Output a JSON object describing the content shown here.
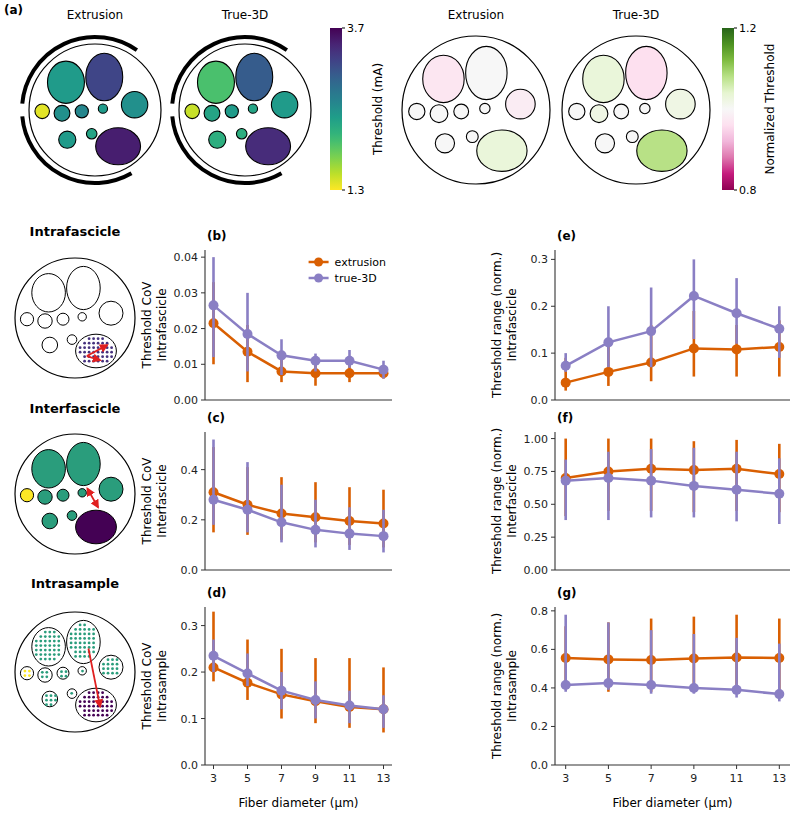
{
  "chart_data": [
    {
      "type": "map",
      "panel_label": "(a)",
      "colorbars": [
        {
          "label": "Threshold (mA)",
          "range": [
            1.3,
            3.7
          ],
          "ticks": [
            1.3,
            3.7
          ],
          "maps": [
            {
              "title": "Extrusion",
              "values": [
                2.4,
                3.2,
                1.4,
                2.5,
                2.6,
                2.4,
                2.5,
                2.4,
                2.3,
                3.5
              ]
            },
            {
              "title": "True-3D",
              "values": [
                2.0,
                3.0,
                1.5,
                2.3,
                2.4,
                2.3,
                2.4,
                2.2,
                2.2,
                3.4
              ]
            }
          ]
        },
        {
          "label": "Normalized Threshold",
          "range": [
            0.8,
            1.2
          ],
          "ticks": [
            0.8,
            1.2
          ],
          "maps": [
            {
              "title": "Extrusion",
              "values": [
                0.97,
                1.0,
                1.0,
                1.0,
                1.0,
                1.0,
                0.98,
                1.0,
                1.0,
                1.03
              ]
            },
            {
              "title": "True-3D",
              "values": [
                1.03,
                0.96,
                1.0,
                1.02,
                1.0,
                1.0,
                1.02,
                1.0,
                1.0,
                1.08
              ]
            }
          ]
        }
      ]
    },
    {
      "type": "line",
      "panel_label": "(b)",
      "row_label": "Intrafascicle",
      "y_label": "Threshold CoV Intrafascicle",
      "x": [
        3,
        5,
        7,
        9,
        11,
        13
      ],
      "xlim": [
        2.5,
        13.5
      ],
      "ylim": [
        0,
        0.042
      ],
      "yticks": [
        {
          "value": 0,
          "label": "0.00"
        },
        {
          "value": 0.01,
          "label": "0.01"
        },
        {
          "value": 0.02,
          "label": "0.02"
        },
        {
          "value": 0.03,
          "label": "0.03"
        },
        {
          "value": 0.04,
          "label": "0.04"
        }
      ],
      "tick_labels": "y",
      "legend": "upper right",
      "series": [
        {
          "name": "extrusion",
          "color": "#d95f02",
          "marker": "circle",
          "values": [
            0.0215,
            0.0135,
            0.008,
            0.0075,
            0.0075,
            0.0075
          ],
          "error_low": [
            0.01,
            0.005,
            0.005,
            0.004,
            0.005,
            0.006
          ],
          "error_high": [
            0.033,
            0.021,
            0.013,
            0.012,
            0.011,
            0.009
          ]
        },
        {
          "name": "true-3D",
          "color": "#8a7fc4",
          "marker": "circle",
          "values": [
            0.0265,
            0.0185,
            0.0125,
            0.011,
            0.011,
            0.0085
          ],
          "error_low": [
            0.012,
            0.008,
            0.007,
            0.008,
            0.009,
            0.006
          ],
          "error_high": [
            0.04,
            0.03,
            0.017,
            0.013,
            0.014,
            0.011
          ]
        }
      ]
    },
    {
      "type": "line",
      "panel_label": "(c)",
      "row_label": "Interfascicle",
      "y_label": "Threshold CoV Interfascicle",
      "x": [
        3,
        5,
        7,
        9,
        11,
        13
      ],
      "xlim": [
        2.5,
        13.5
      ],
      "ylim": [
        0,
        0.55
      ],
      "yticks": [
        {
          "value": 0,
          "label": "0.0"
        },
        {
          "value": 0.2,
          "label": "0.2"
        },
        {
          "value": 0.4,
          "label": "0.4"
        }
      ],
      "tick_labels": "y",
      "series": [
        {
          "name": "extrusion",
          "color": "#d95f02",
          "marker": "circle",
          "values": [
            0.31,
            0.26,
            0.225,
            0.21,
            0.195,
            0.185
          ],
          "error_low": [
            0.15,
            0.14,
            0.12,
            0.11,
            0.1,
            0.09
          ],
          "error_high": [
            0.49,
            0.41,
            0.37,
            0.35,
            0.33,
            0.32
          ]
        },
        {
          "name": "true-3D",
          "color": "#8a7fc4",
          "marker": "circle",
          "values": [
            0.28,
            0.24,
            0.19,
            0.16,
            0.145,
            0.135
          ],
          "error_low": [
            0.18,
            0.15,
            0.11,
            0.09,
            0.08,
            0.07
          ],
          "error_high": [
            0.52,
            0.43,
            0.34,
            0.28,
            0.25,
            0.24
          ]
        }
      ]
    },
    {
      "type": "line",
      "panel_label": "(d)",
      "row_label": "Intrasample",
      "y_label": "Threshold CoV Intrasample",
      "x_label": "Fiber diameter (μm)",
      "x": [
        3,
        5,
        7,
        9,
        11,
        13
      ],
      "xlim": [
        2.5,
        13.5
      ],
      "ylim": [
        0,
        0.34
      ],
      "xticks": [
        3,
        5,
        7,
        9,
        11,
        13
      ],
      "yticks": [
        {
          "value": 0,
          "label": "0.0"
        },
        {
          "value": 0.1,
          "label": "0.1"
        },
        {
          "value": 0.2,
          "label": "0.2"
        },
        {
          "value": 0.3,
          "label": "0.3"
        }
      ],
      "tick_labels": true,
      "series": [
        {
          "name": "extrusion",
          "color": "#d95f02",
          "marker": "circle",
          "values": [
            0.21,
            0.177,
            0.152,
            0.137,
            0.125,
            0.12
          ],
          "error_low": [
            0.18,
            0.14,
            0.1,
            0.09,
            0.08,
            0.07
          ],
          "error_high": [
            0.33,
            0.27,
            0.25,
            0.23,
            0.23,
            0.21
          ]
        },
        {
          "name": "true-3D",
          "color": "#8a7fc4",
          "marker": "circle",
          "values": [
            0.235,
            0.197,
            0.16,
            0.14,
            0.128,
            0.12
          ],
          "error_low": [
            0.2,
            0.17,
            0.12,
            0.1,
            0.09,
            0.08
          ],
          "error_high": [
            0.27,
            0.24,
            0.2,
            0.18,
            0.16,
            0.15
          ]
        }
      ]
    },
    {
      "type": "line",
      "panel_label": "(e)",
      "y_label": "Threshold range (norm.) Intrafascicle",
      "x": [
        3,
        5,
        7,
        9,
        11,
        13
      ],
      "xlim": [
        2.5,
        13.5
      ],
      "ylim": [
        0,
        0.32
      ],
      "yticks": [
        {
          "value": 0,
          "label": "0.0"
        },
        {
          "value": 0.1,
          "label": "0.1"
        },
        {
          "value": 0.2,
          "label": "0.2"
        },
        {
          "value": 0.3,
          "label": "0.3"
        }
      ],
      "tick_labels": "y",
      "series": [
        {
          "name": "extrusion",
          "color": "#d95f02",
          "marker": "circle",
          "values": [
            0.037,
            0.06,
            0.08,
            0.11,
            0.108,
            0.113
          ],
          "error_low": [
            0.02,
            0.03,
            0.04,
            0.05,
            0.05,
            0.05
          ],
          "error_high": [
            0.09,
            0.12,
            0.16,
            0.19,
            0.16,
            0.17
          ]
        },
        {
          "name": "true-3D",
          "color": "#8a7fc4",
          "marker": "circle",
          "values": [
            0.073,
            0.123,
            0.147,
            0.222,
            0.185,
            0.152
          ],
          "error_low": [
            0.06,
            0.07,
            0.07,
            0.13,
            0.12,
            0.09
          ],
          "error_high": [
            0.1,
            0.2,
            0.24,
            0.3,
            0.26,
            0.2
          ]
        }
      ]
    },
    {
      "type": "line",
      "panel_label": "(f)",
      "y_label": "Threshold range (norm.) Interfascicle",
      "x": [
        3,
        5,
        7,
        9,
        11,
        13
      ],
      "xlim": [
        2.5,
        13.5
      ],
      "ylim": [
        0,
        1.05
      ],
      "yticks": [
        {
          "value": 0,
          "label": "0.00"
        },
        {
          "value": 0.25,
          "label": "0.25"
        },
        {
          "value": 0.5,
          "label": "0.50"
        },
        {
          "value": 0.75,
          "label": "0.75"
        },
        {
          "value": 1,
          "label": "1.00"
        }
      ],
      "tick_labels": "y",
      "series": [
        {
          "name": "extrusion",
          "color": "#d95f02",
          "marker": "circle",
          "values": [
            0.7,
            0.75,
            0.77,
            0.76,
            0.77,
            0.73
          ],
          "error_low": [
            0.41,
            0.45,
            0.45,
            0.44,
            0.45,
            0.44
          ],
          "error_high": [
            1.0,
            1.0,
            1.0,
            0.98,
            0.99,
            0.96
          ]
        },
        {
          "name": "true-3D",
          "color": "#8a7fc4",
          "marker": "circle",
          "values": [
            0.68,
            0.7,
            0.68,
            0.64,
            0.61,
            0.58
          ],
          "error_low": [
            0.38,
            0.38,
            0.4,
            0.4,
            0.37,
            0.35
          ],
          "error_high": [
            0.84,
            0.9,
            0.92,
            0.93,
            0.9,
            0.85
          ]
        }
      ]
    },
    {
      "type": "line",
      "panel_label": "(g)",
      "y_label": "Threshold range (norm.) Intrasample",
      "x_label": "Fiber diameter (μm)",
      "x": [
        3,
        5,
        7,
        9,
        11,
        13
      ],
      "xlim": [
        2.5,
        13.5
      ],
      "ylim": [
        0,
        0.82
      ],
      "xticks": [
        3,
        5,
        7,
        9,
        11,
        13
      ],
      "yticks": [
        {
          "value": 0,
          "label": "0.0"
        },
        {
          "value": 0.2,
          "label": "0.2"
        },
        {
          "value": 0.4,
          "label": "0.4"
        },
        {
          "value": 0.6,
          "label": "0.6"
        },
        {
          "value": 0.8,
          "label": "0.8"
        }
      ],
      "tick_labels": true,
      "series": [
        {
          "name": "extrusion",
          "color": "#d95f02",
          "marker": "circle",
          "values": [
            0.555,
            0.548,
            0.545,
            0.553,
            0.558,
            0.555
          ],
          "error_low": [
            0.4,
            0.38,
            0.38,
            0.39,
            0.39,
            0.38
          ],
          "error_high": [
            0.72,
            0.74,
            0.76,
            0.77,
            0.78,
            0.76
          ]
        },
        {
          "name": "true-3D",
          "color": "#8a7fc4",
          "marker": "circle",
          "values": [
            0.415,
            0.425,
            0.415,
            0.4,
            0.39,
            0.368
          ],
          "error_low": [
            0.38,
            0.39,
            0.37,
            0.37,
            0.35,
            0.33
          ],
          "error_high": [
            0.78,
            0.74,
            0.7,
            0.68,
            0.66,
            0.63
          ]
        }
      ]
    }
  ]
}
